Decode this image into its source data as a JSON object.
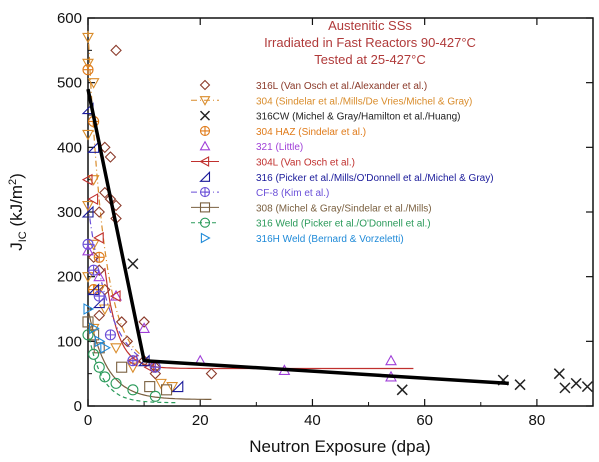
{
  "chart_data": {
    "type": "scatter",
    "title": [
      "Austenitic SSs",
      "Irradiated in Fast Reactors 90-427°C",
      "Tested at 25-427°C"
    ],
    "title_color": "#b03a3a",
    "xlabel": "Neutron Exposure (dpa)",
    "ylabel_main": "J",
    "ylabel_sub": "IC",
    "ylabel_rest": " (kJ/m",
    "ylabel_sup": "2",
    "ylabel_end": ")",
    "xlim": [
      0,
      90
    ],
    "ylim": [
      0,
      600
    ],
    "x_ticks": [
      "0",
      "20",
      "40",
      "60",
      "80"
    ],
    "y_ticks": [
      "0",
      "100",
      "200",
      "300",
      "400",
      "500",
      "600"
    ],
    "legend_position": "top-right",
    "series": [
      {
        "name": "316L (Van Osch et al./Alexander et al.)",
        "marker": "diamond",
        "color": "#8b3a2a",
        "line": "none",
        "points": [
          [
            5,
            550
          ],
          [
            3,
            400
          ],
          [
            4,
            385
          ],
          [
            3,
            330
          ],
          [
            4,
            320
          ],
          [
            5,
            310
          ],
          [
            2,
            300
          ],
          [
            5,
            290
          ],
          [
            1,
            230
          ],
          [
            2,
            210
          ],
          [
            3,
            180
          ],
          [
            2,
            140
          ],
          [
            6,
            130
          ],
          [
            10,
            130
          ],
          [
            7,
            100
          ],
          [
            10,
            70
          ],
          [
            12,
            60
          ],
          [
            12,
            50
          ],
          [
            22,
            50
          ]
        ]
      },
      {
        "name": "304 (Sindelar et al./Mills/De Vries/Michel & Gray)",
        "marker": "triangle-down",
        "color": "#d98c2b",
        "line": "dash-dot",
        "points": [
          [
            0,
            570
          ],
          [
            0,
            530
          ],
          [
            1,
            500
          ],
          [
            0,
            420
          ],
          [
            1,
            350
          ],
          [
            0,
            310
          ],
          [
            1,
            250
          ],
          [
            0,
            200
          ],
          [
            2,
            180
          ],
          [
            3,
            150
          ],
          [
            1,
            120
          ],
          [
            5,
            90
          ],
          [
            8,
            60
          ],
          [
            13,
            35
          ],
          [
            15,
            30
          ]
        ]
      },
      {
        "name": "316CW (Michel & Gray/Hamilton et al./Huang)",
        "marker": "x",
        "color": "#222222",
        "line": "none",
        "points": [
          [
            8,
            220
          ],
          [
            56,
            25
          ],
          [
            74,
            40
          ],
          [
            77,
            33
          ],
          [
            84,
            50
          ],
          [
            85,
            28
          ],
          [
            87,
            35
          ],
          [
            89,
            30
          ]
        ]
      },
      {
        "name": "304 HAZ (Sindelar et al.)",
        "marker": "circle-plus",
        "color": "#e07b1a",
        "line": "none",
        "points": [
          [
            0,
            520
          ],
          [
            1,
            440
          ],
          [
            2,
            230
          ],
          [
            1,
            180
          ]
        ]
      },
      {
        "name": "321 (Little)",
        "marker": "triangle-up",
        "color": "#a040d8",
        "line": "none",
        "points": [
          [
            0,
            240
          ],
          [
            2,
            200
          ],
          [
            5,
            170
          ],
          [
            10,
            120
          ],
          [
            20,
            70
          ],
          [
            35,
            55
          ],
          [
            54,
            70
          ],
          [
            54,
            45
          ]
        ]
      },
      {
        "name": "304L (Van Osch et al.)",
        "marker": "triangle-left",
        "color": "#c0302e",
        "line": "solid",
        "points": [
          [
            0,
            350
          ],
          [
            1,
            320
          ],
          [
            2,
            260
          ],
          [
            5,
            170
          ],
          [
            8,
            70
          ],
          [
            11,
            60
          ]
        ]
      },
      {
        "name": "316 (Picker et al./Mills/O'Donnell et al./Michel & Gray)",
        "marker": "triangle-right-down",
        "color": "#1a1a9a",
        "line": "none",
        "points": [
          [
            0,
            460
          ],
          [
            1,
            400
          ],
          [
            0,
            300
          ],
          [
            1,
            180
          ],
          [
            2,
            160
          ],
          [
            10,
            70
          ],
          [
            16,
            30
          ]
        ]
      },
      {
        "name": "CF-8 (Kim et al.)",
        "marker": "circle-plus",
        "color": "#6a4fd8",
        "line": "dash-dot",
        "points": [
          [
            0,
            250
          ],
          [
            1,
            210
          ],
          [
            2,
            170
          ],
          [
            4,
            110
          ],
          [
            8,
            70
          ],
          [
            12,
            60
          ]
        ]
      },
      {
        "name": "308 (Michel & Gray/Sindelar et al./Mills)",
        "marker": "square",
        "color": "#7a6040",
        "line": "solid",
        "points": [
          [
            0,
            130
          ],
          [
            1,
            110
          ],
          [
            2,
            90
          ],
          [
            6,
            60
          ],
          [
            11,
            30
          ],
          [
            14,
            25
          ]
        ]
      },
      {
        "name": "316 Weld (Picker et al./O'Donnell et al.)",
        "marker": "circle",
        "color": "#2a9a5a",
        "line": "dashed",
        "points": [
          [
            0,
            110
          ],
          [
            1,
            80
          ],
          [
            2,
            60
          ],
          [
            3,
            45
          ],
          [
            5,
            35
          ],
          [
            8,
            25
          ],
          [
            12,
            15
          ]
        ]
      },
      {
        "name": "316H Weld (Bernard & Vorzeletti)",
        "marker": "triangle-right",
        "color": "#1f8ad8",
        "line": "none",
        "points": [
          [
            0,
            150
          ],
          [
            1,
            120
          ],
          [
            2,
            100
          ],
          [
            3,
            90
          ]
        ]
      }
    ],
    "trend_line": [
      [
        0,
        490
      ],
      [
        10,
        70
      ],
      [
        75,
        35
      ]
    ]
  }
}
